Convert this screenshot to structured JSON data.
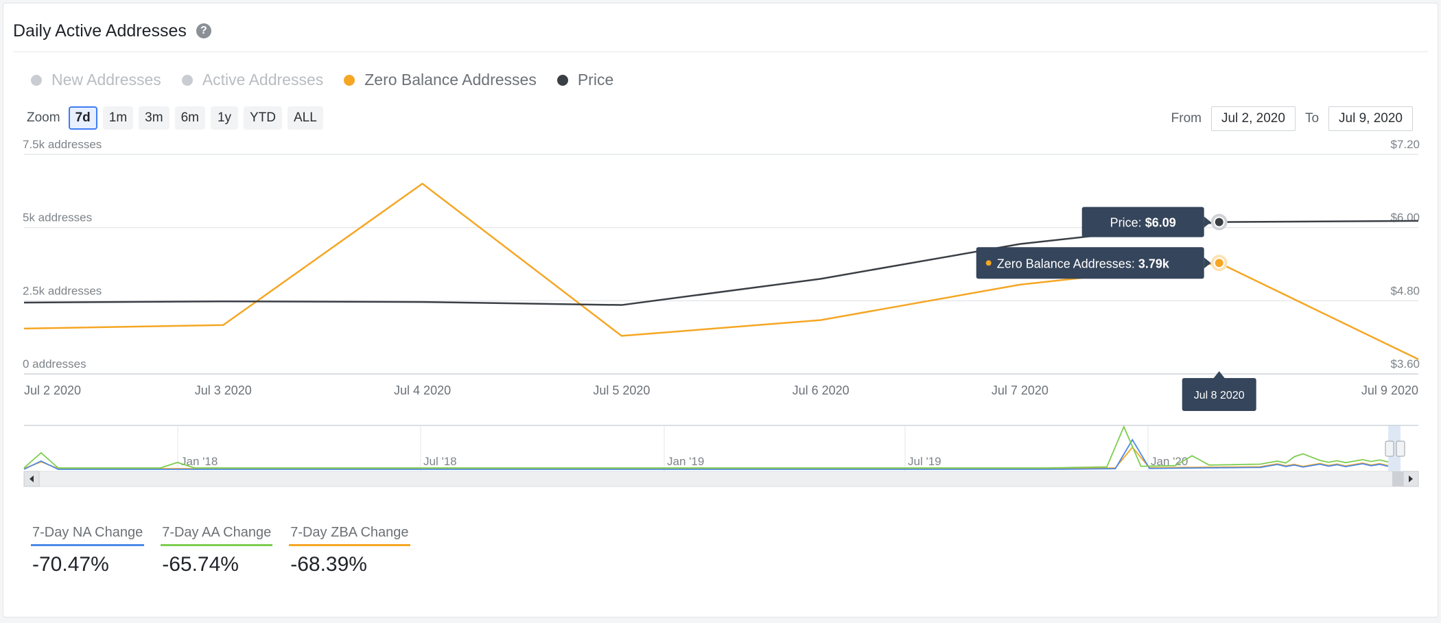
{
  "header": {
    "title": "Daily Active Addresses",
    "help_icon": "question-circle-icon"
  },
  "legend": [
    {
      "label": "New Addresses",
      "color": "#c9ccd0",
      "active": false
    },
    {
      "label": "Active Addresses",
      "color": "#c9ccd0",
      "active": false
    },
    {
      "label": "Zero Balance Addresses",
      "color": "#f5a623",
      "active": true
    },
    {
      "label": "Price",
      "color": "#3a3f45",
      "active": true
    }
  ],
  "zoom": {
    "label": "Zoom",
    "buttons": [
      "7d",
      "1m",
      "3m",
      "6m",
      "1y",
      "YTD",
      "ALL"
    ],
    "selected": "7d"
  },
  "range": {
    "from_label": "From",
    "from_value": "Jul 2, 2020",
    "to_label": "To",
    "to_value": "Jul 9, 2020"
  },
  "chart_data": {
    "type": "line",
    "x": [
      "Jul 2 2020",
      "Jul 3 2020",
      "Jul 4 2020",
      "Jul 5 2020",
      "Jul 6 2020",
      "Jul 7 2020",
      "Jul 8 2020",
      "Jul 9 2020"
    ],
    "series": [
      {
        "name": "Zero Balance Addresses",
        "axis": "left",
        "color": "#f5a623",
        "values": [
          1550,
          1670,
          6500,
          1300,
          1840,
          3050,
          3790,
          500
        ]
      },
      {
        "name": "Price",
        "axis": "right",
        "color": "#3a3f45",
        "values": [
          4.77,
          4.79,
          4.78,
          4.73,
          5.16,
          5.73,
          6.09,
          6.11
        ]
      }
    ],
    "left_axis": {
      "ticks": [
        "0 addresses",
        "2.5k addresses",
        "5k addresses",
        "7.5k addresses"
      ],
      "values": [
        0,
        2500,
        5000,
        7500
      ],
      "ylim": [
        0,
        7500
      ]
    },
    "right_axis": {
      "ticks": [
        "$3.60",
        "$4.80",
        "$6.00",
        "$7.20"
      ],
      "values": [
        3.6,
        4.8,
        6.0,
        7.2
      ],
      "ylim": [
        3.6,
        7.2
      ]
    },
    "tooltip": {
      "index": 6,
      "price_label": "Price:",
      "price_value": "$6.09",
      "zba_label": "Zero Balance Addresses:",
      "zba_value": "3.79k",
      "date": "Jul 8 2020"
    },
    "navigator": {
      "labels": [
        "Jan '18",
        "Jul '18",
        "Jan '19",
        "Jul '19",
        "Jan '20"
      ],
      "scroll_left_icon": "arrow-left-icon",
      "scroll_right_icon": "arrow-right-icon"
    }
  },
  "stats": [
    {
      "label": "7-Day NA Change",
      "value": "-70.47%",
      "color": "#4a8ae8"
    },
    {
      "label": "7-Day AA Change",
      "value": "-65.74%",
      "color": "#7ccd4e"
    },
    {
      "label": "7-Day ZBA Change",
      "value": "-68.39%",
      "color": "#f5a623"
    }
  ]
}
